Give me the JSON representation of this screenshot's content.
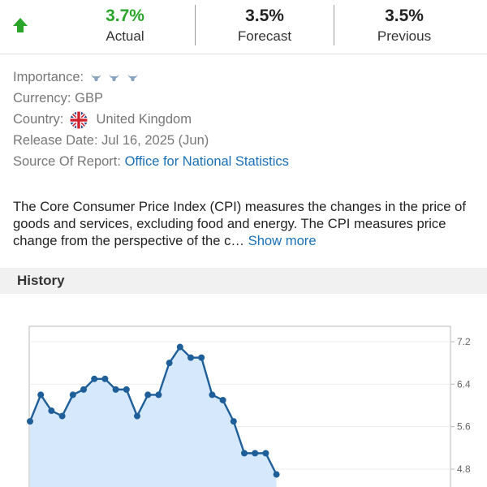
{
  "stats": {
    "actual": {
      "value": "3.7%",
      "label": "Actual"
    },
    "forecast": {
      "value": "3.5%",
      "label": "Forecast"
    },
    "previous": {
      "value": "3.5%",
      "label": "Previous"
    }
  },
  "details": {
    "importance_label": "Importance:",
    "importance_icon": "bull-icon",
    "currency_label": "Currency:",
    "currency_value": "GBP",
    "country_label": "Country:",
    "country_flag": "uk-flag-icon",
    "country_value": "United Kingdom",
    "release_label": "Release Date:",
    "release_value": "Jul 16, 2025 (Jun)",
    "source_label": "Source Of Report:",
    "source_value": "Office for National Statistics"
  },
  "description": {
    "text": "The Core Consumer Price Index (CPI) measures the changes in the price of goods and services, excluding food and energy. The CPI measures price change from the perspective of the c…",
    "more": "Show more"
  },
  "history": {
    "title": "History"
  },
  "colors": {
    "positive": "#2aa52a",
    "link": "#1a6fb5",
    "line": "#1f5f99",
    "fill": "#d6e8fb"
  },
  "chart_data": {
    "type": "area",
    "y_ticks": [
      "7.2",
      "6.4",
      "5.6",
      "4.8"
    ],
    "ylim": [
      4.8,
      7.2
    ],
    "grid": true,
    "values": [
      5.7,
      6.2,
      5.9,
      5.8,
      6.2,
      6.3,
      6.5,
      6.5,
      6.3,
      6.3,
      5.8,
      6.2,
      6.2,
      6.8,
      7.1,
      6.9,
      6.9,
      6.2,
      6.1,
      5.7,
      5.1,
      5.1,
      5.1,
      4.7
    ]
  }
}
